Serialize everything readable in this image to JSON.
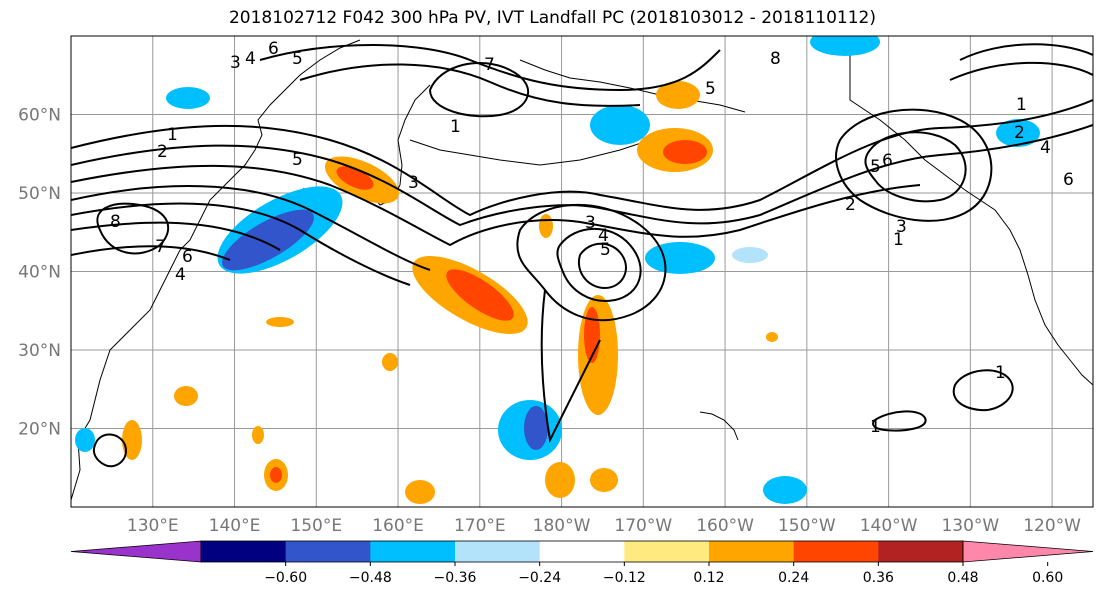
{
  "title": "2018102712 F042 300 hPa PV, IVT Landfall PC (2018103012 - 2018110112)",
  "map": {
    "lon_range": [
      120,
      245
    ],
    "lat_range": [
      10,
      70
    ],
    "lon_ticks": [
      "130°E",
      "140°E",
      "150°E",
      "160°E",
      "170°E",
      "180°W",
      "170°W",
      "160°W",
      "150°W",
      "140°W",
      "130°W",
      "120°W"
    ],
    "lat_ticks": [
      "20°N",
      "30°N",
      "40°N",
      "50°N",
      "60°N"
    ],
    "contour_labels": [
      "1",
      "2",
      "3",
      "4",
      "5",
      "6",
      "7",
      "8"
    ]
  },
  "colorbar": {
    "colors": [
      "#9933cc",
      "#000080",
      "#3355cc",
      "#00bfff",
      "#b3e2fb",
      "#ffffff",
      "#ffea80",
      "#ffa500",
      "#ff4500",
      "#b22222",
      "#ff88aa"
    ],
    "tick_labels": [
      "−0.60",
      "−0.48",
      "−0.36",
      "−0.24",
      "−0.12",
      "0.12",
      "0.24",
      "0.36",
      "0.48",
      "0.60"
    ]
  }
}
